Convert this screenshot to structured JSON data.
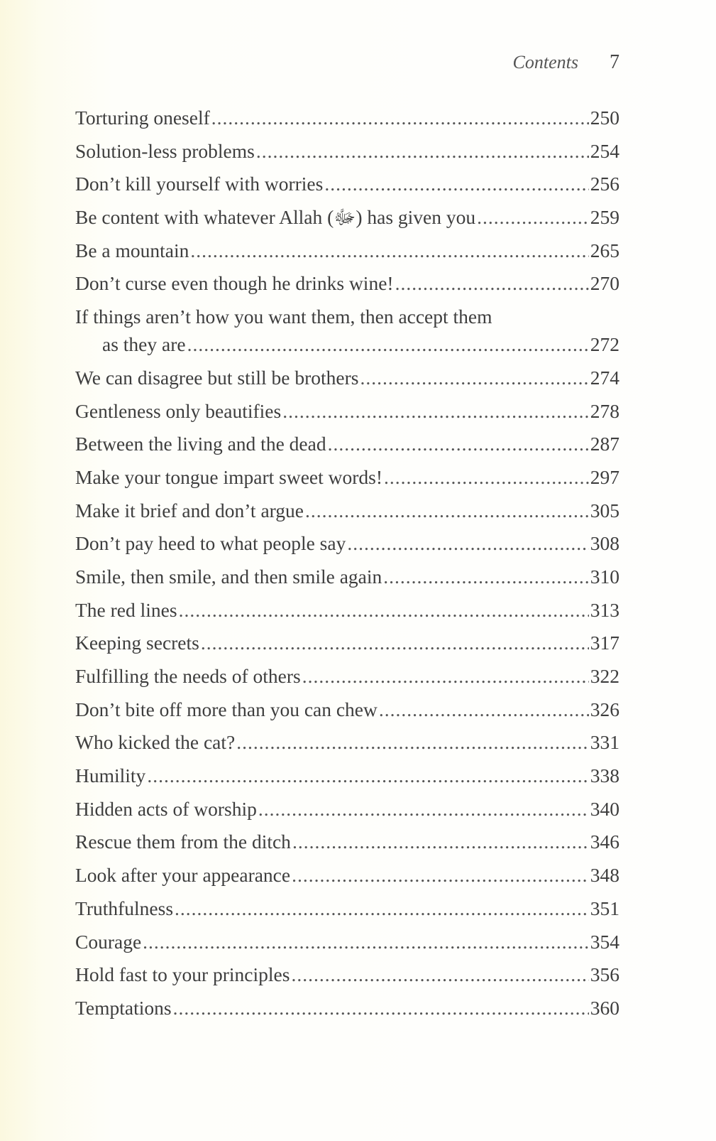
{
  "header": {
    "title": "Contents",
    "page_number": "7"
  },
  "entries": [
    {
      "title": [
        "Torturing oneself"
      ],
      "page": "250"
    },
    {
      "title": [
        "Solution-less problems"
      ],
      "page": "254"
    },
    {
      "title": [
        "Don’t kill yourself with worries"
      ],
      "page": "256"
    },
    {
      "title": [
        "Be content with whatever Allah (ﷻ) has given you "
      ],
      "page": "259"
    },
    {
      "title": [
        "Be a mountain"
      ],
      "page": "265"
    },
    {
      "title": [
        "Don’t curse even though he drinks wine! "
      ],
      "page": "270"
    },
    {
      "title": [
        "If things aren’t how you want them, then accept them",
        "as they are"
      ],
      "page": "272"
    },
    {
      "title": [
        "We can disagree but still be brothers "
      ],
      "page": "274"
    },
    {
      "title": [
        "Gentleness only beautifies "
      ],
      "page": "278"
    },
    {
      "title": [
        "Between the living and the dead"
      ],
      "page": "287"
    },
    {
      "title": [
        "Make your tongue impart sweet words! "
      ],
      "page": "297"
    },
    {
      "title": [
        "Make it brief and don’t argue"
      ],
      "page": "305"
    },
    {
      "title": [
        "Don’t pay heed to what people say"
      ],
      "page": "308"
    },
    {
      "title": [
        "Smile, then smile, and then smile again"
      ],
      "page": "310"
    },
    {
      "title": [
        "The red lines"
      ],
      "page": "313"
    },
    {
      "title": [
        "Keeping secrets"
      ],
      "page": "317"
    },
    {
      "title": [
        "Fulfilling the needs of others "
      ],
      "page": "322"
    },
    {
      "title": [
        "Don’t bite off more than you can chew "
      ],
      "page": "326"
    },
    {
      "title": [
        "Who kicked the cat?"
      ],
      "page": "331"
    },
    {
      "title": [
        "Humility"
      ],
      "page": "338"
    },
    {
      "title": [
        "Hidden acts of worship "
      ],
      "page": "340"
    },
    {
      "title": [
        "Rescue them from the ditch "
      ],
      "page": "346"
    },
    {
      "title": [
        "Look after your appearance "
      ],
      "page": "348"
    },
    {
      "title": [
        "Truthfulness "
      ],
      "page": "351"
    },
    {
      "title": [
        "Courage"
      ],
      "page": "354"
    },
    {
      "title": [
        "Hold fast to your principles "
      ],
      "page": "356"
    },
    {
      "title": [
        "Temptations"
      ],
      "page": "360"
    }
  ]
}
